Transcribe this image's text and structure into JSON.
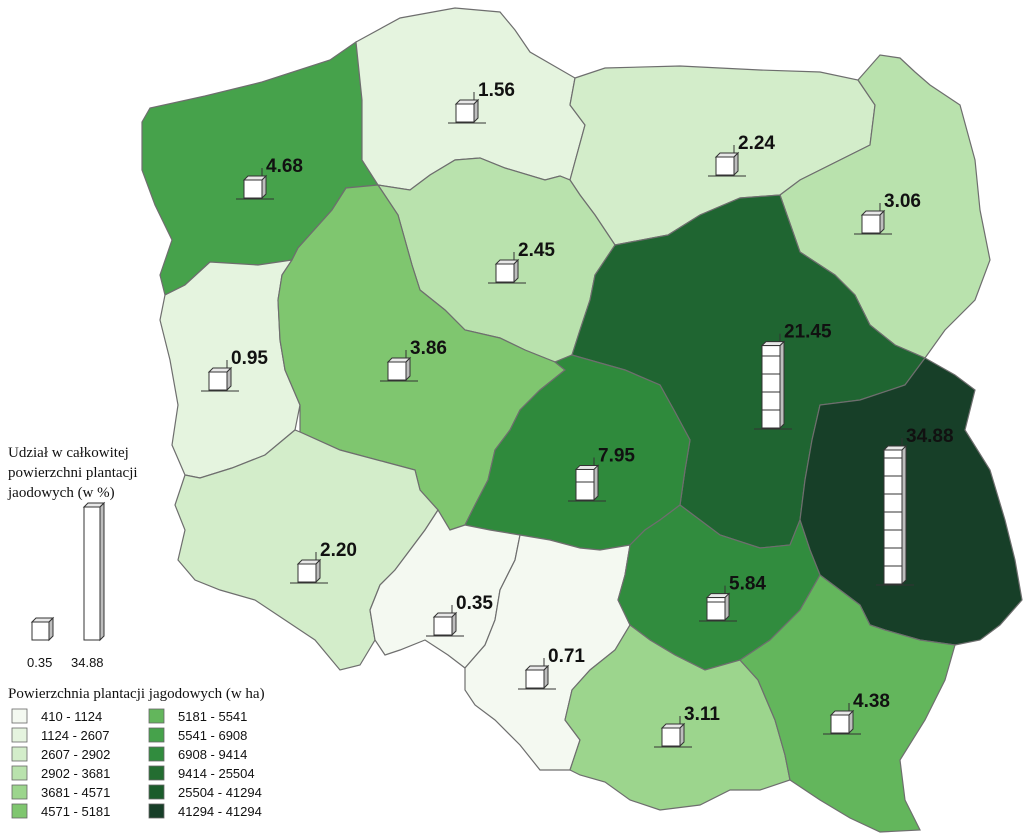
{
  "legend": {
    "bar_title_lines": [
      "Udział w całkowitej",
      "powierzchni plantacji",
      "jaodowych (w %)"
    ],
    "bar_min_label": "0.35",
    "bar_max_label": "34.88",
    "choropleth_title": "Powierzchnia plantacji jagodowych (w ha)",
    "classes": [
      {
        "label": "410 - 1124",
        "color": "#f4f9f1"
      },
      {
        "label": "1124 - 2607",
        "color": "#e5f4df"
      },
      {
        "label": "2607 - 2902",
        "color": "#d3edca"
      },
      {
        "label": "2902 - 3681",
        "color": "#b9e2ad"
      },
      {
        "label": "3681 - 4571",
        "color": "#9cd58d"
      },
      {
        "label": "4571 - 5181",
        "color": "#7fc66f"
      },
      {
        "label": "5181 - 5541",
        "color": "#63b65c"
      },
      {
        "label": "5541 - 6908",
        "color": "#46a24b"
      },
      {
        "label": "6908 - 9414",
        "color": "#318c3e"
      },
      {
        "label": "9414 - 25504",
        "color": "#236d31"
      },
      {
        "label": "25504 - 41294",
        "color": "#1b5c2b"
      },
      {
        "label": "41294 - 41294",
        "color": "#173f28"
      }
    ]
  },
  "regions": [
    {
      "id": "zachodniopomorskie",
      "share": 4.68,
      "label": "4.68",
      "color": "#46a24b"
    },
    {
      "id": "pomorskie",
      "share": 1.56,
      "label": "1.56",
      "color": "#e5f4df"
    },
    {
      "id": "warminsko-mazurskie",
      "share": 2.24,
      "label": "2.24",
      "color": "#d3edca"
    },
    {
      "id": "podlaskie",
      "share": 3.06,
      "label": "3.06",
      "color": "#b9e2ad"
    },
    {
      "id": "kujawsko-pomorskie",
      "share": 2.45,
      "label": "2.45",
      "color": "#b9e2ad"
    },
    {
      "id": "lubuskie",
      "share": 0.95,
      "label": "0.95",
      "color": "#e5f4df"
    },
    {
      "id": "wielkopolskie",
      "share": 3.86,
      "label": "3.86",
      "color": "#7fc66f"
    },
    {
      "id": "mazowieckie",
      "share": 21.45,
      "label": "21.45",
      "color": "#1f6531"
    },
    {
      "id": "lodzkie",
      "share": 7.95,
      "label": "7.95",
      "color": "#2f8a3c"
    },
    {
      "id": "lubelskie",
      "share": 34.88,
      "label": "34.88",
      "color": "#173f28"
    },
    {
      "id": "dolnoslaskie",
      "share": 2.2,
      "label": "2.20",
      "color": "#d3edca"
    },
    {
      "id": "opolskie",
      "share": 0.35,
      "label": "0.35",
      "color": "#f4f9f1"
    },
    {
      "id": "slaskie",
      "share": 0.71,
      "label": "0.71",
      "color": "#f4f9f1"
    },
    {
      "id": "swietokrzyskie",
      "share": 5.84,
      "label": "5.84",
      "color": "#318c3e"
    },
    {
      "id": "malopolskie",
      "share": 3.11,
      "label": "3.11",
      "color": "#9cd58d"
    },
    {
      "id": "podkarpackie",
      "share": 4.38,
      "label": "4.38",
      "color": "#63b65c"
    }
  ]
}
